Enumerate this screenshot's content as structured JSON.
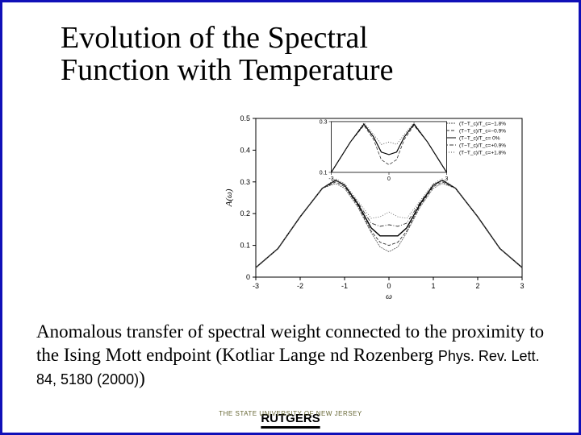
{
  "title_line1": "Evolution of the Spectral",
  "title_line2": "Function with Temperature",
  "body_text_part1": "Anomalous transfer of spectral weight connected to the proximity to the Ising Mott endpoint (Kotliar Lange nd Rozenberg ",
  "body_text_part2": "Phys. Rev. Lett. 84, 5180 (2000)",
  "body_text_part3": ")",
  "footer_small": "THE STATE UNIVERSITY OF NEW JERSEY",
  "footer_big": "RUTGERS",
  "chart": {
    "type": "line",
    "xlabel": "ω",
    "ylabel": "A(ω)",
    "xlim": [
      -3,
      3
    ],
    "ylim": [
      0,
      0.5
    ],
    "xticks": [
      -3,
      -2,
      -1,
      0,
      1,
      2,
      3
    ],
    "yticks": [
      0,
      0.1,
      0.2,
      0.3,
      0.4,
      0.5
    ],
    "tick_fontsize": 9,
    "label_fontsize": 11,
    "axis_color": "#000000",
    "background_color": "#ffffff",
    "legend": {
      "position": "upper-right",
      "fontsize": 6.5,
      "items": [
        {
          "label": "(T−T_c)/T_c=−1.8%",
          "dash": "2,1",
          "color": "#555555"
        },
        {
          "label": "(T−T_c)/T_c=−0.9%",
          "dash": "4,2",
          "color": "#333333"
        },
        {
          "label": "(T−T_c)/T_c= 0%",
          "dash": "",
          "color": "#000000"
        },
        {
          "label": "(T−T_c)/T_c=+0.9%",
          "dash": "5,2,1,2",
          "color": "#333333"
        },
        {
          "label": "(T−T_c)/T_c=+1.8%",
          "dash": "1,2",
          "color": "#555555"
        }
      ]
    },
    "series": [
      {
        "name": "m1.8",
        "color": "#555555",
        "dash": "2,1",
        "width": 0.8,
        "x": [
          -3,
          -2.5,
          -2,
          -1.5,
          -1.2,
          -1,
          -0.7,
          -0.4,
          -0.2,
          0,
          0.2,
          0.4,
          0.7,
          1,
          1.2,
          1.5,
          2,
          2.5,
          3
        ],
        "y": [
          0.03,
          0.09,
          0.19,
          0.28,
          0.295,
          0.28,
          0.22,
          0.14,
          0.095,
          0.08,
          0.095,
          0.14,
          0.22,
          0.28,
          0.295,
          0.28,
          0.19,
          0.09,
          0.03
        ]
      },
      {
        "name": "m0.9",
        "color": "#333333",
        "dash": "4,2",
        "width": 0.9,
        "x": [
          -3,
          -2.5,
          -2,
          -1.5,
          -1.2,
          -1,
          -0.7,
          -0.4,
          -0.2,
          0,
          0.2,
          0.4,
          0.7,
          1,
          1.2,
          1.5,
          2,
          2.5,
          3
        ],
        "y": [
          0.03,
          0.09,
          0.19,
          0.28,
          0.3,
          0.285,
          0.225,
          0.145,
          0.11,
          0.1,
          0.11,
          0.145,
          0.225,
          0.285,
          0.3,
          0.28,
          0.19,
          0.09,
          0.03
        ]
      },
      {
        "name": "zero",
        "color": "#000000",
        "dash": "",
        "width": 1.4,
        "x": [
          -3,
          -2.5,
          -2,
          -1.5,
          -1.2,
          -1,
          -0.7,
          -0.4,
          -0.2,
          0,
          0.2,
          0.4,
          0.7,
          1,
          1.2,
          1.5,
          2,
          2.5,
          3
        ],
        "y": [
          0.03,
          0.09,
          0.19,
          0.28,
          0.305,
          0.29,
          0.23,
          0.155,
          0.13,
          0.13,
          0.13,
          0.155,
          0.23,
          0.29,
          0.305,
          0.28,
          0.19,
          0.09,
          0.03
        ]
      },
      {
        "name": "p0.9",
        "color": "#333333",
        "dash": "5,2,1,2",
        "width": 0.9,
        "x": [
          -3,
          -2.5,
          -2,
          -1.5,
          -1.2,
          -1,
          -0.7,
          -0.4,
          -0.2,
          0,
          0.2,
          0.4,
          0.7,
          1,
          1.2,
          1.5,
          2,
          2.5,
          3
        ],
        "y": [
          0.03,
          0.09,
          0.19,
          0.28,
          0.305,
          0.29,
          0.235,
          0.17,
          0.16,
          0.165,
          0.16,
          0.17,
          0.235,
          0.29,
          0.305,
          0.28,
          0.19,
          0.09,
          0.03
        ]
      },
      {
        "name": "p1.8",
        "color": "#555555",
        "dash": "1,2",
        "width": 0.8,
        "x": [
          -3,
          -2.5,
          -2,
          -1.5,
          -1.2,
          -1,
          -0.7,
          -0.4,
          -0.2,
          0,
          0.2,
          0.4,
          0.7,
          1,
          1.2,
          1.5,
          2,
          2.5,
          3
        ],
        "y": [
          0.03,
          0.09,
          0.19,
          0.28,
          0.31,
          0.295,
          0.24,
          0.185,
          0.19,
          0.205,
          0.19,
          0.185,
          0.24,
          0.295,
          0.31,
          0.28,
          0.19,
          0.09,
          0.03
        ]
      }
    ],
    "inset": {
      "xlim": [
        -3,
        3
      ],
      "ylim": [
        0.1,
        0.3
      ],
      "xticks": [
        -3,
        0,
        3
      ],
      "yticks": [
        0.1,
        0.3
      ],
      "tick_fontsize": 7,
      "x": [
        -3,
        -2,
        -1.3,
        -0.8,
        -0.4,
        0,
        0.4,
        0.8,
        1.3,
        2,
        3
      ],
      "series": [
        {
          "color": "#333",
          "dash": "4,2",
          "width": 0.8,
          "y": [
            0.1,
            0.22,
            0.285,
            0.23,
            0.15,
            0.13,
            0.15,
            0.23,
            0.285,
            0.22,
            0.1
          ]
        },
        {
          "color": "#000",
          "dash": "",
          "width": 1.2,
          "y": [
            0.1,
            0.22,
            0.29,
            0.24,
            0.18,
            0.17,
            0.18,
            0.24,
            0.29,
            0.22,
            0.1
          ]
        },
        {
          "color": "#333",
          "dash": "1,2",
          "width": 0.8,
          "y": [
            0.1,
            0.22,
            0.295,
            0.25,
            0.21,
            0.22,
            0.21,
            0.25,
            0.295,
            0.22,
            0.1
          ]
        }
      ]
    }
  }
}
